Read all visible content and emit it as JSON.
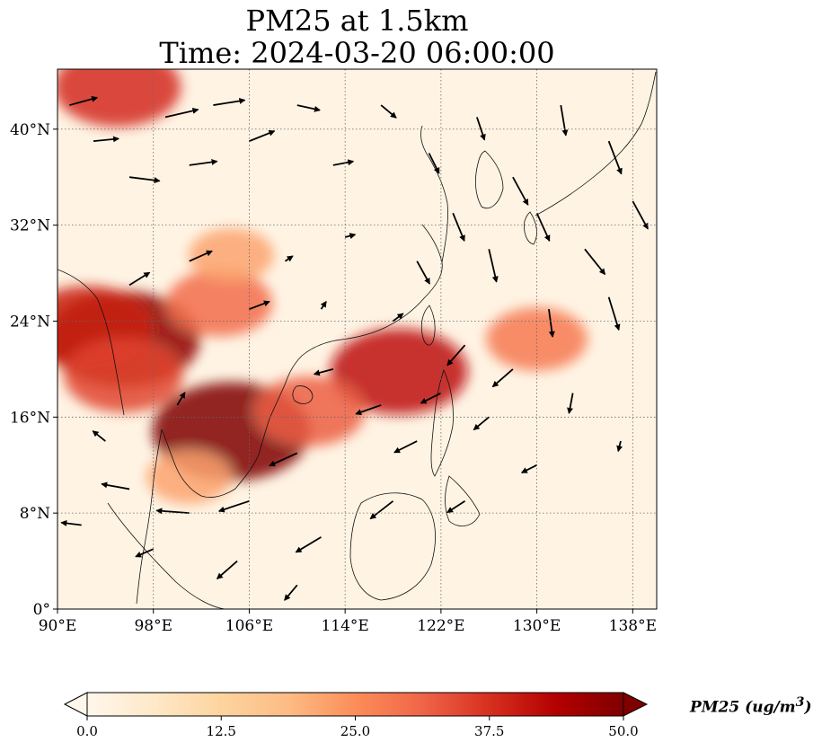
{
  "title": {
    "line1": "PM25 at 1.5km",
    "line2": "Time: 2024-03-20 06:00:00"
  },
  "map": {
    "type": "pm25-concentration-with-wind-vectors",
    "projection": "PlateCarree",
    "extent": {
      "lon_min": 90,
      "lon_max": 140,
      "lat_min": 0,
      "lat_max": 45
    },
    "x_ticks": [
      {
        "value": 90,
        "label": "90°E"
      },
      {
        "value": 98,
        "label": "98°E"
      },
      {
        "value": 106,
        "label": "106°E"
      },
      {
        "value": 114,
        "label": "114°E"
      },
      {
        "value": 122,
        "label": "122°E"
      },
      {
        "value": 130,
        "label": "130°E"
      },
      {
        "value": 138,
        "label": "138°E"
      }
    ],
    "y_ticks": [
      {
        "value": 0,
        "label": "0°"
      },
      {
        "value": 8,
        "label": "8°N"
      },
      {
        "value": 16,
        "label": "16°N"
      },
      {
        "value": 24,
        "label": "24°N"
      },
      {
        "value": 32,
        "label": "32°N"
      },
      {
        "value": 40,
        "label": "40°N"
      }
    ],
    "gridlines": true,
    "gridline_style": "dotted",
    "plumes": [
      {
        "name": "myanmar-laos-hotspot",
        "lon": 95.5,
        "lat": 22.5,
        "level": 48
      },
      {
        "name": "myanmar-west",
        "lon": 92.5,
        "lat": 23.5,
        "level": 40
      },
      {
        "name": "myanmar-south",
        "lon": 95.5,
        "lat": 19.5,
        "level": 35
      },
      {
        "name": "cambodia-hotspot",
        "lon": 104.5,
        "lat": 14.8,
        "level": 50
      },
      {
        "name": "south-china-band",
        "lon": 103.5,
        "lat": 25.5,
        "level": 30
      },
      {
        "name": "sichuan",
        "lon": 104.5,
        "lat": 29.5,
        "level": 22
      },
      {
        "name": "north-band",
        "lon": 95,
        "lat": 43.5,
        "level": 38
      },
      {
        "name": "luzon-strait",
        "lon": 118.5,
        "lat": 19.8,
        "level": 42
      },
      {
        "name": "vietnam-coast",
        "lon": 111,
        "lat": 16.5,
        "level": 32
      },
      {
        "name": "thailand-gulf",
        "lon": 101,
        "lat": 11,
        "level": 22
      },
      {
        "name": "long-range-band",
        "lon": 130,
        "lat": 22.5,
        "level": 28
      }
    ],
    "wind_vectors": [
      {
        "lon": 91,
        "lat": 42,
        "dx": 2.2,
        "dy": 0.6
      },
      {
        "lon": 93,
        "lat": 39,
        "dx": 2.0,
        "dy": 0.2
      },
      {
        "lon": 96,
        "lat": 36,
        "dx": 2.4,
        "dy": -0.3
      },
      {
        "lon": 99,
        "lat": 41,
        "dx": 2.6,
        "dy": 0.6
      },
      {
        "lon": 101,
        "lat": 37,
        "dx": 2.2,
        "dy": 0.3
      },
      {
        "lon": 103,
        "lat": 42,
        "dx": 2.5,
        "dy": 0.4
      },
      {
        "lon": 106,
        "lat": 39,
        "dx": 2.0,
        "dy": 0.8
      },
      {
        "lon": 110,
        "lat": 42,
        "dx": 1.8,
        "dy": -0.4
      },
      {
        "lon": 113,
        "lat": 37,
        "dx": 1.6,
        "dy": 0.3
      },
      {
        "lon": 117,
        "lat": 42,
        "dx": 1.2,
        "dy": -1.0
      },
      {
        "lon": 121,
        "lat": 38,
        "dx": 0.8,
        "dy": -1.6
      },
      {
        "lon": 125,
        "lat": 41,
        "dx": 0.6,
        "dy": -1.8
      },
      {
        "lon": 128,
        "lat": 36,
        "dx": 1.2,
        "dy": -2.2
      },
      {
        "lon": 132,
        "lat": 42,
        "dx": 0.4,
        "dy": -2.4
      },
      {
        "lon": 136,
        "lat": 39,
        "dx": 1.0,
        "dy": -2.6
      },
      {
        "lon": 138,
        "lat": 34,
        "dx": 1.2,
        "dy": -2.2
      },
      {
        "lon": 134,
        "lat": 30,
        "dx": 1.6,
        "dy": -2.0
      },
      {
        "lon": 130,
        "lat": 33,
        "dx": 1.0,
        "dy": -2.2
      },
      {
        "lon": 126,
        "lat": 30,
        "dx": 0.6,
        "dy": -2.6
      },
      {
        "lon": 131,
        "lat": 25,
        "dx": 0.3,
        "dy": -2.2
      },
      {
        "lon": 136,
        "lat": 26,
        "dx": 0.8,
        "dy": -2.6
      },
      {
        "lon": 123,
        "lat": 33,
        "dx": 0.9,
        "dy": -2.2
      },
      {
        "lon": 120,
        "lat": 29,
        "dx": 1.0,
        "dy": -1.8
      },
      {
        "lon": 124,
        "lat": 22,
        "dx": -1.4,
        "dy": -1.6
      },
      {
        "lon": 128,
        "lat": 20,
        "dx": -1.6,
        "dy": -1.4
      },
      {
        "lon": 133,
        "lat": 18,
        "dx": -0.3,
        "dy": -1.6
      },
      {
        "lon": 126,
        "lat": 16,
        "dx": -1.2,
        "dy": -1.0
      },
      {
        "lon": 120,
        "lat": 14,
        "dx": -1.8,
        "dy": -0.9
      },
      {
        "lon": 117,
        "lat": 17,
        "dx": -2.0,
        "dy": -0.7
      },
      {
        "lon": 113,
        "lat": 20,
        "dx": -1.5,
        "dy": -0.4
      },
      {
        "lon": 110,
        "lat": 13,
        "dx": -2.2,
        "dy": -1.0
      },
      {
        "lon": 106,
        "lat": 9,
        "dx": -2.4,
        "dy": -0.8
      },
      {
        "lon": 101,
        "lat": 8,
        "dx": -2.6,
        "dy": 0.2
      },
      {
        "lon": 96,
        "lat": 10,
        "dx": -2.2,
        "dy": 0.4
      },
      {
        "lon": 92,
        "lat": 7,
        "dx": -1.6,
        "dy": 0.2
      },
      {
        "lon": 98,
        "lat": 5,
        "dx": -1.4,
        "dy": -0.6
      },
      {
        "lon": 105,
        "lat": 4,
        "dx": -1.6,
        "dy": -1.4
      },
      {
        "lon": 112,
        "lat": 6,
        "dx": -2.0,
        "dy": -1.2
      },
      {
        "lon": 118,
        "lat": 9,
        "dx": -1.8,
        "dy": -1.4
      },
      {
        "lon": 124,
        "lat": 9,
        "dx": -1.4,
        "dy": -0.9
      },
      {
        "lon": 110,
        "lat": 2,
        "dx": -1.0,
        "dy": -1.2
      },
      {
        "lon": 94,
        "lat": 14,
        "dx": -1.0,
        "dy": 0.8
      },
      {
        "lon": 100,
        "lat": 17,
        "dx": 0.6,
        "dy": 1.0
      },
      {
        "lon": 96,
        "lat": 27,
        "dx": 1.6,
        "dy": 1.0
      },
      {
        "lon": 101,
        "lat": 29,
        "dx": 1.8,
        "dy": 0.8
      },
      {
        "lon": 106,
        "lat": 25,
        "dx": 1.6,
        "dy": 0.6
      },
      {
        "lon": 109,
        "lat": 29,
        "dx": 0.6,
        "dy": 0.4
      },
      {
        "lon": 112,
        "lat": 25,
        "dx": 0.4,
        "dy": 0.6
      },
      {
        "lon": 114,
        "lat": 31,
        "dx": 0.8,
        "dy": 0.2
      },
      {
        "lon": 118,
        "lat": 24,
        "dx": 0.8,
        "dy": 0.6
      },
      {
        "lon": 122,
        "lat": 18,
        "dx": -1.6,
        "dy": -0.8
      },
      {
        "lon": 130,
        "lat": 12,
        "dx": -1.2,
        "dy": -0.6
      },
      {
        "lon": 137,
        "lat": 14,
        "dx": -0.2,
        "dy": -0.8
      }
    ]
  },
  "colorbar": {
    "colormap": "OrRd",
    "extend": "both",
    "min": 0.0,
    "max": 50.0,
    "colors": [
      "#fff7ec",
      "#fee8c8",
      "#fdd49e",
      "#fdbb84",
      "#fc8d59",
      "#ef6548",
      "#d7301f",
      "#b30000",
      "#7f0000"
    ],
    "ticks": [
      {
        "value": 0.0,
        "label": "0.0"
      },
      {
        "value": 12.5,
        "label": "12.5"
      },
      {
        "value": 25.0,
        "label": "25.0"
      },
      {
        "value": 37.5,
        "label": "37.5"
      },
      {
        "value": 50.0,
        "label": "50.0"
      }
    ],
    "label_prefix": "PM25 (ug/m",
    "label_exponent": "3",
    "label_suffix": ")"
  }
}
